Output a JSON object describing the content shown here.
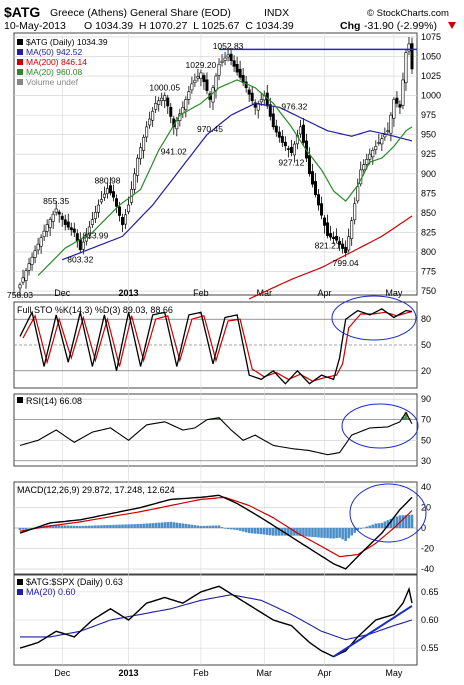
{
  "header": {
    "ticker": "$ATG",
    "name": "Greece (Athens) General Share (EOD)",
    "exchange": "INDX",
    "date": "10-May-2013",
    "ohlc": "O 1034.39  H 1070.27  L 1025.67  C 1034.39",
    "chg_label": "Chg",
    "chg_value": "-31.90 (-2.99%)",
    "arrow_color": "#cc0000"
  },
  "watermark": "© StockCharts.com",
  "chart_data": [
    {
      "type": "candlestick",
      "panel": "price",
      "legend": [
        {
          "label": "$ATG (Daily) 1034.39",
          "color": "#000000"
        },
        {
          "label": "MA(50) 942.52",
          "color": "#2020a0"
        },
        {
          "label": "MA(200) 846.14",
          "color": "#cc0000"
        },
        {
          "label": "MA(20) 960.08",
          "color": "#2a8a2a"
        },
        {
          "label": "Volume undef",
          "color": "#888888"
        }
      ],
      "ylim": [
        745,
        1080
      ],
      "yticks": [
        750,
        775,
        800,
        825,
        850,
        875,
        900,
        925,
        950,
        975,
        1000,
        1025,
        1050,
        1075
      ],
      "xtick_labels": [
        "Dec",
        "2013",
        "Feb",
        "Mar",
        "Apr",
        "May"
      ],
      "xtick_idx": [
        14,
        36,
        60,
        81,
        101,
        124
      ],
      "num_days": 131,
      "close_keys": [
        [
          0,
          758
        ],
        [
          3,
          785
        ],
        [
          6,
          810
        ],
        [
          9,
          835
        ],
        [
          12,
          855
        ],
        [
          15,
          835
        ],
        [
          18,
          825
        ],
        [
          20,
          803
        ],
        [
          23,
          832
        ],
        [
          26,
          860
        ],
        [
          29,
          881
        ],
        [
          31,
          870
        ],
        [
          34,
          835
        ],
        [
          36,
          860
        ],
        [
          39,
          920
        ],
        [
          42,
          960
        ],
        [
          45,
          990
        ],
        [
          48,
          1000
        ],
        [
          51,
          960
        ],
        [
          54,
          985
        ],
        [
          57,
          1015
        ],
        [
          60,
          1029
        ],
        [
          63,
          995
        ],
        [
          66,
          1040
        ],
        [
          69,
          1052
        ],
        [
          72,
          1030
        ],
        [
          75,
          1010
        ],
        [
          78,
          985
        ],
        [
          81,
          1000
        ],
        [
          84,
          960
        ],
        [
          87,
          940
        ],
        [
          90,
          927
        ],
        [
          93,
          960
        ],
        [
          96,
          900
        ],
        [
          99,
          860
        ],
        [
          102,
          821
        ],
        [
          105,
          815
        ],
        [
          108,
          799
        ],
        [
          110,
          840
        ],
        [
          113,
          905
        ],
        [
          116,
          925
        ],
        [
          119,
          940
        ],
        [
          122,
          955
        ],
        [
          124,
          995
        ],
        [
          126,
          985
        ],
        [
          128,
          1055
        ],
        [
          129,
          1066
        ],
        [
          130,
          1034
        ]
      ],
      "ma20_keys": [
        [
          6,
          770
        ],
        [
          15,
          805
        ],
        [
          24,
          825
        ],
        [
          33,
          860
        ],
        [
          40,
          880
        ],
        [
          46,
          930
        ],
        [
          53,
          975
        ],
        [
          60,
          990
        ],
        [
          66,
          1010
        ],
        [
          72,
          1020
        ],
        [
          78,
          1010
        ],
        [
          84,
          990
        ],
        [
          90,
          960
        ],
        [
          95,
          930
        ],
        [
          100,
          905
        ],
        [
          104,
          878
        ],
        [
          108,
          865
        ],
        [
          112,
          885
        ],
        [
          116,
          915
        ],
        [
          120,
          920
        ],
        [
          124,
          935
        ],
        [
          128,
          955
        ],
        [
          130,
          960
        ]
      ],
      "ma50_keys": [
        [
          14,
          790
        ],
        [
          24,
          805
        ],
        [
          34,
          820
        ],
        [
          44,
          860
        ],
        [
          54,
          910
        ],
        [
          62,
          950
        ],
        [
          70,
          975
        ],
        [
          78,
          990
        ],
        [
          86,
          985
        ],
        [
          94,
          970
        ],
        [
          102,
          955
        ],
        [
          110,
          948
        ],
        [
          116,
          955
        ],
        [
          122,
          950
        ],
        [
          130,
          942
        ]
      ],
      "ma200_keys": [
        [
          76,
          740
        ],
        [
          90,
          765
        ],
        [
          100,
          780
        ],
        [
          110,
          800
        ],
        [
          120,
          820
        ],
        [
          130,
          846
        ]
      ],
      "hline": 1059,
      "annotations": [
        {
          "text": "758.03",
          "i": 0,
          "v": 758
        },
        {
          "text": "803.32",
          "i": 20,
          "v": 803
        },
        {
          "text": "855.35",
          "i": 12,
          "v": 855
        },
        {
          "text": "833.99",
          "i": 25,
          "v": 834
        },
        {
          "text": "880.98",
          "i": 29,
          "v": 881
        },
        {
          "text": "941.02",
          "i": 51,
          "v": 941
        },
        {
          "text": "1000.05",
          "i": 48,
          "v": 1000
        },
        {
          "text": "970.45",
          "i": 63,
          "v": 970
        },
        {
          "text": "1029.20",
          "i": 60,
          "v": 1029
        },
        {
          "text": "1052.83",
          "i": 69,
          "v": 1053
        },
        {
          "text": "976.32",
          "i": 91,
          "v": 976
        },
        {
          "text": "927.12",
          "i": 90,
          "v": 927
        },
        {
          "text": "821.21",
          "i": 102,
          "v": 821
        },
        {
          "text": "799.04",
          "i": 108,
          "v": 799
        }
      ]
    },
    {
      "type": "line",
      "panel": "stochastic",
      "legend": "Full STO %K(14,3) %D(3) 89.03, 88.66",
      "ylim": [
        0,
        100
      ],
      "yticks": [
        20,
        50,
        80
      ],
      "k_keys": [
        [
          0,
          60
        ],
        [
          4,
          88
        ],
        [
          8,
          25
        ],
        [
          12,
          85
        ],
        [
          16,
          30
        ],
        [
          20,
          88
        ],
        [
          24,
          25
        ],
        [
          28,
          85
        ],
        [
          32,
          20
        ],
        [
          36,
          88
        ],
        [
          40,
          25
        ],
        [
          44,
          85
        ],
        [
          48,
          88
        ],
        [
          52,
          25
        ],
        [
          56,
          85
        ],
        [
          60,
          88
        ],
        [
          64,
          28
        ],
        [
          68,
          82
        ],
        [
          72,
          85
        ],
        [
          76,
          15
        ],
        [
          80,
          10
        ],
        [
          84,
          20
        ],
        [
          88,
          5
        ],
        [
          92,
          20
        ],
        [
          96,
          5
        ],
        [
          100,
          15
        ],
        [
          104,
          10
        ],
        [
          106,
          35
        ],
        [
          108,
          80
        ],
        [
          112,
          90
        ],
        [
          116,
          85
        ],
        [
          120,
          92
        ],
        [
          124,
          82
        ],
        [
          128,
          90
        ],
        [
          130,
          89
        ]
      ],
      "d_keys": [
        [
          1,
          58
        ],
        [
          5,
          84
        ],
        [
          9,
          30
        ],
        [
          13,
          80
        ],
        [
          17,
          35
        ],
        [
          21,
          82
        ],
        [
          25,
          32
        ],
        [
          29,
          80
        ],
        [
          33,
          25
        ],
        [
          37,
          84
        ],
        [
          41,
          32
        ],
        [
          45,
          80
        ],
        [
          49,
          84
        ],
        [
          53,
          32
        ],
        [
          57,
          80
        ],
        [
          61,
          84
        ],
        [
          65,
          32
        ],
        [
          69,
          78
        ],
        [
          73,
          80
        ],
        [
          77,
          22
        ],
        [
          81,
          13
        ],
        [
          85,
          18
        ],
        [
          89,
          10
        ],
        [
          93,
          16
        ],
        [
          97,
          8
        ],
        [
          101,
          12
        ],
        [
          105,
          15
        ],
        [
          107,
          28
        ],
        [
          109,
          70
        ],
        [
          113,
          86
        ],
        [
          117,
          86
        ],
        [
          121,
          88
        ],
        [
          125,
          84
        ],
        [
          129,
          88
        ],
        [
          130,
          88.66
        ]
      ]
    },
    {
      "type": "line",
      "panel": "rsi",
      "legend": "RSI(14) 66.08",
      "ylim": [
        25,
        95
      ],
      "yticks": [
        30,
        50,
        70,
        90
      ],
      "keys": [
        [
          0,
          45
        ],
        [
          6,
          50
        ],
        [
          12,
          60
        ],
        [
          18,
          48
        ],
        [
          24,
          58
        ],
        [
          30,
          62
        ],
        [
          36,
          50
        ],
        [
          42,
          65
        ],
        [
          48,
          68
        ],
        [
          54,
          60
        ],
        [
          58,
          62
        ],
        [
          62,
          70
        ],
        [
          66,
          72
        ],
        [
          70,
          60
        ],
        [
          74,
          50
        ],
        [
          78,
          55
        ],
        [
          84,
          45
        ],
        [
          90,
          42
        ],
        [
          96,
          40
        ],
        [
          102,
          36
        ],
        [
          106,
          38
        ],
        [
          110,
          55
        ],
        [
          116,
          62
        ],
        [
          122,
          63
        ],
        [
          126,
          68
        ],
        [
          128,
          77
        ],
        [
          130,
          66
        ]
      ]
    },
    {
      "type": "line",
      "panel": "macd",
      "legend": "MACD(12,26,9) 29.872, 17.248, 12.624",
      "ylim": [
        -45,
        45
      ],
      "yticks": [
        -40,
        -20,
        0,
        20,
        40
      ],
      "macd_keys": [
        [
          0,
          -5
        ],
        [
          10,
          5
        ],
        [
          20,
          8
        ],
        [
          30,
          14
        ],
        [
          40,
          20
        ],
        [
          50,
          28
        ],
        [
          60,
          30
        ],
        [
          66,
          32
        ],
        [
          72,
          24
        ],
        [
          80,
          10
        ],
        [
          88,
          -5
        ],
        [
          96,
          -20
        ],
        [
          104,
          -35
        ],
        [
          108,
          -40
        ],
        [
          114,
          -22
        ],
        [
          120,
          -5
        ],
        [
          126,
          18
        ],
        [
          130,
          30
        ]
      ],
      "signal_keys": [
        [
          0,
          -3
        ],
        [
          10,
          2
        ],
        [
          20,
          6
        ],
        [
          30,
          11
        ],
        [
          40,
          16
        ],
        [
          50,
          22
        ],
        [
          60,
          28
        ],
        [
          68,
          30
        ],
        [
          76,
          22
        ],
        [
          84,
          10
        ],
        [
          92,
          -5
        ],
        [
          100,
          -18
        ],
        [
          106,
          -28
        ],
        [
          112,
          -26
        ],
        [
          118,
          -15
        ],
        [
          124,
          0
        ],
        [
          130,
          17
        ]
      ],
      "hist_color": "#4a8ec8"
    },
    {
      "type": "line",
      "panel": "relative",
      "legend": [
        {
          "label": "$ATG:$SPX (Daily) 0.63",
          "color": "#000000"
        },
        {
          "label": "MA(20) 0.60",
          "color": "#2020a0"
        }
      ],
      "ylim": [
        0.52,
        0.68
      ],
      "yticks": [
        0.55,
        0.6,
        0.65
      ],
      "ratio_keys": [
        [
          0,
          0.55
        ],
        [
          6,
          0.56
        ],
        [
          12,
          0.58
        ],
        [
          18,
          0.57
        ],
        [
          24,
          0.6
        ],
        [
          30,
          0.62
        ],
        [
          36,
          0.6
        ],
        [
          42,
          0.63
        ],
        [
          48,
          0.64
        ],
        [
          54,
          0.63
        ],
        [
          60,
          0.65
        ],
        [
          66,
          0.66
        ],
        [
          72,
          0.64
        ],
        [
          78,
          0.62
        ],
        [
          84,
          0.6
        ],
        [
          90,
          0.59
        ],
        [
          96,
          0.56
        ],
        [
          100,
          0.545
        ],
        [
          104,
          0.535
        ],
        [
          108,
          0.545
        ],
        [
          112,
          0.57
        ],
        [
          118,
          0.6
        ],
        [
          124,
          0.61
        ],
        [
          127,
          0.63
        ],
        [
          129,
          0.655
        ],
        [
          130,
          0.63
        ]
      ],
      "ma_keys": [
        [
          0,
          0.57
        ],
        [
          10,
          0.57
        ],
        [
          20,
          0.58
        ],
        [
          30,
          0.6
        ],
        [
          40,
          0.61
        ],
        [
          50,
          0.62
        ],
        [
          60,
          0.635
        ],
        [
          70,
          0.645
        ],
        [
          80,
          0.635
        ],
        [
          90,
          0.61
        ],
        [
          100,
          0.58
        ],
        [
          108,
          0.565
        ],
        [
          116,
          0.575
        ],
        [
          124,
          0.59
        ],
        [
          130,
          0.6
        ]
      ],
      "trendline": [
        [
          104,
          0.535
        ],
        [
          130,
          0.625
        ]
      ]
    }
  ]
}
